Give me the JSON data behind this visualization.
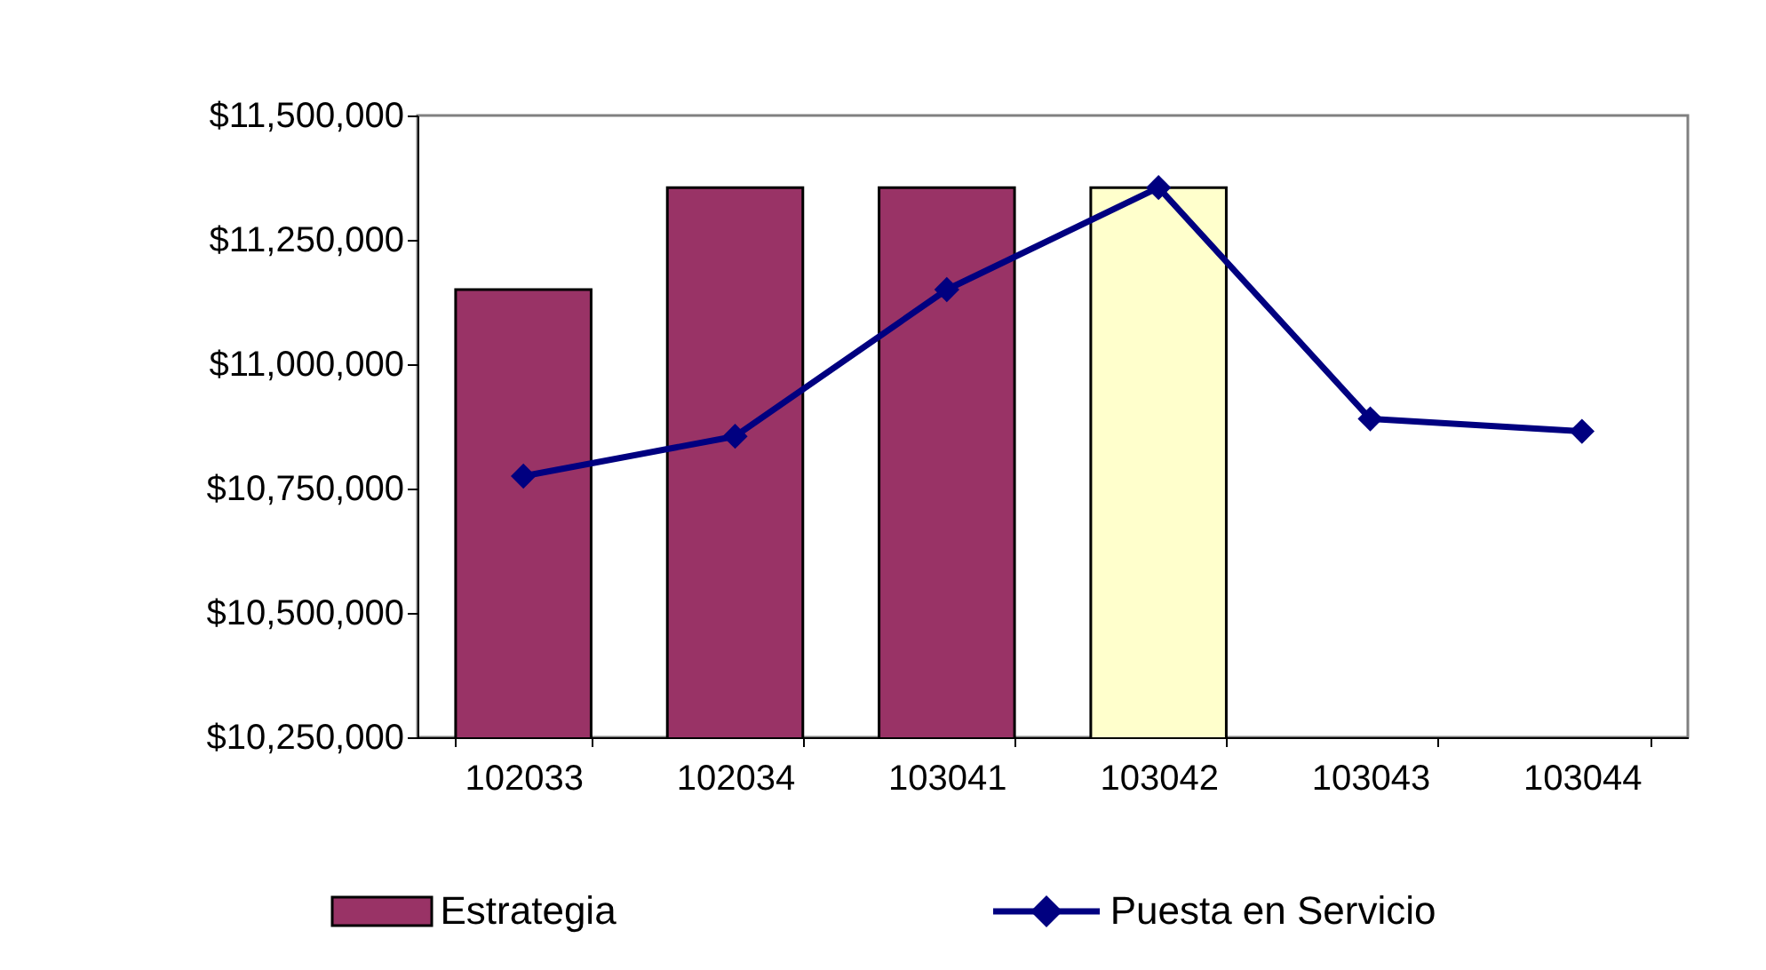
{
  "chart_data": {
    "type": "bar",
    "categories": [
      "102033",
      "102034",
      "103041",
      "103042",
      "103043",
      "103044"
    ],
    "series": [
      {
        "name": "Estrategia",
        "color": "#993366",
        "colors": [
          "#993366",
          "#993366",
          "#993366",
          "#ffffcc",
          null,
          null
        ],
        "values": [
          11150000,
          11355000,
          11355000,
          11355000,
          null,
          null
        ]
      },
      {
        "name": "Puesta en Servicio",
        "type": "line",
        "color": "#000080",
        "values": [
          10775000,
          10855000,
          11150000,
          11355000,
          10890000,
          10865000
        ]
      }
    ],
    "ylim": [
      10250000,
      11500000
    ],
    "yticks": [
      {
        "value": 10250000,
        "label": "$10,250,000"
      },
      {
        "value": 10500000,
        "label": "$10,500,000"
      },
      {
        "value": 10750000,
        "label": "$10,750,000"
      },
      {
        "value": 11000000,
        "label": "$11,000,000"
      },
      {
        "value": 11250000,
        "label": "$11,250,000"
      },
      {
        "value": 11500000,
        "label": "$11,500,000"
      }
    ],
    "grid": false,
    "legend": "bottom",
    "marker": "diamond",
    "line_style": "solid"
  }
}
